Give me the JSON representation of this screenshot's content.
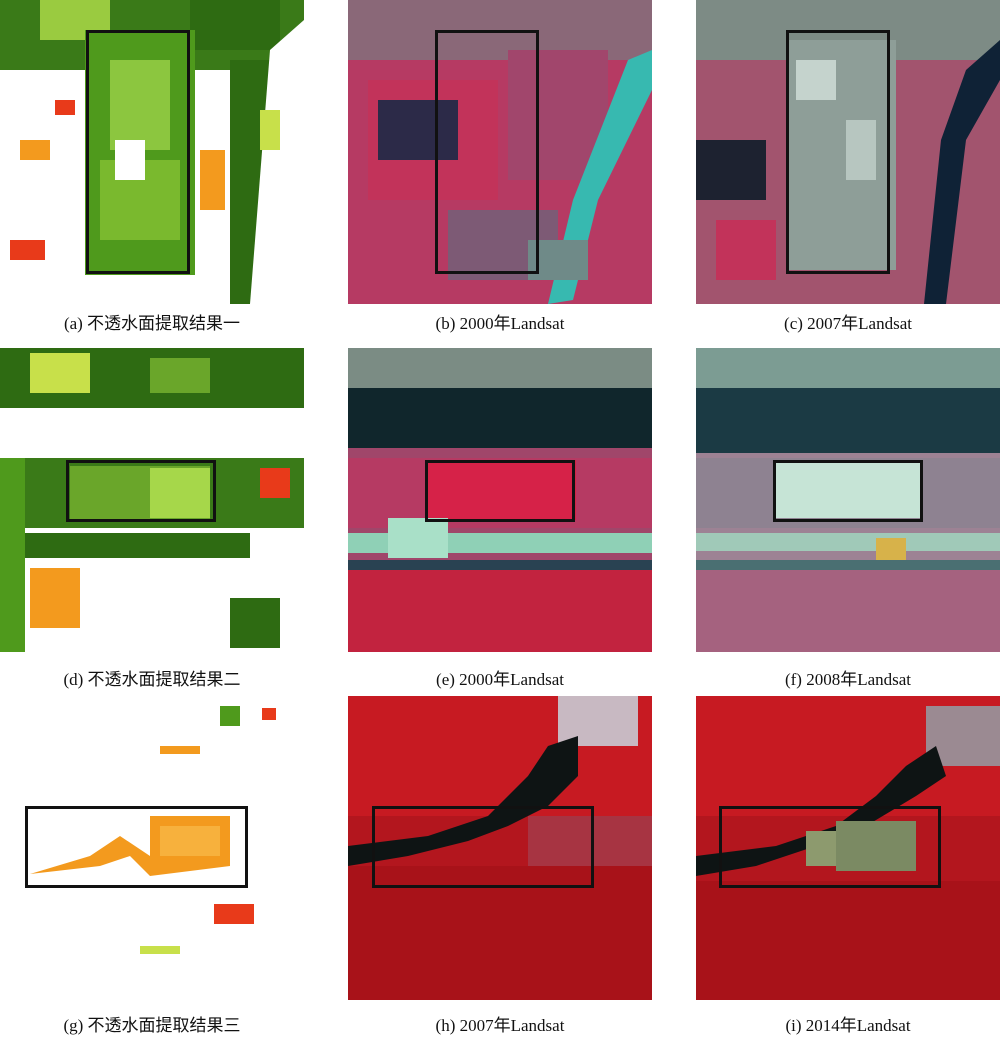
{
  "figure": {
    "panels": [
      {
        "id": "a",
        "caption": "(a) 不透水面提取结果一",
        "kind": "impervious-map"
      },
      {
        "id": "b",
        "caption": "(b) 2000年Landsat",
        "kind": "landsat-image"
      },
      {
        "id": "c",
        "caption": "(c) 2007年Landsat",
        "kind": "landsat-image"
      },
      {
        "id": "d",
        "caption": "(d) 不透水面提取结果二",
        "kind": "impervious-map"
      },
      {
        "id": "e",
        "caption": "(e) 2000年Landsat",
        "kind": "landsat-image"
      },
      {
        "id": "f",
        "caption": "(f) 2008年Landsat",
        "kind": "landsat-image"
      },
      {
        "id": "g",
        "caption": "(g) 不透水面提取结果三",
        "kind": "impervious-map"
      },
      {
        "id": "h",
        "caption": "(h) 2007年Landsat",
        "kind": "landsat-image"
      },
      {
        "id": "i",
        "caption": "(i) 2014年Landsat",
        "kind": "landsat-image"
      }
    ]
  },
  "colors": {
    "dark_green": "#2e6b12",
    "mid_green": "#4f9a1c",
    "light_green": "#8cc63f",
    "yellow_green": "#c8e04a",
    "orange": "#f39a1e",
    "red": "#e83a1a",
    "magenta": "#c2335a",
    "river_cyan": "#37b9b0",
    "water_dark": "#11252c",
    "urban_gray": "#8a9a96",
    "forest_red": "#b3161e",
    "box_stroke": "#111111"
  }
}
